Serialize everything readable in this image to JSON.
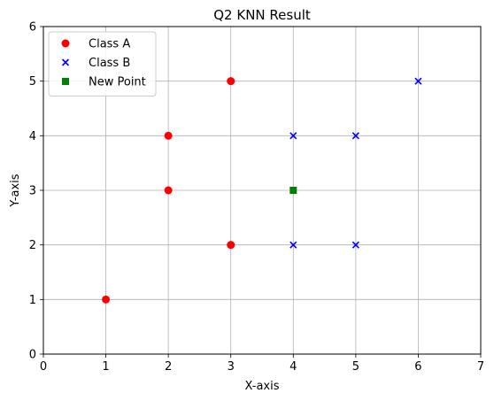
{
  "chart_data": {
    "type": "scatter",
    "title": "Q2 KNN Result",
    "xlabel": "X-axis",
    "ylabel": "Y-axis",
    "xlim": [
      0,
      7
    ],
    "ylim": [
      0,
      6
    ],
    "xticks": [
      0,
      1,
      2,
      3,
      4,
      5,
      6,
      7
    ],
    "yticks": [
      0,
      1,
      2,
      3,
      4,
      5,
      6
    ],
    "grid": true,
    "legend_position": "top-left",
    "series": [
      {
        "name": "Class A",
        "marker": "circle",
        "color": "#ff0000",
        "points": [
          [
            1,
            1
          ],
          [
            2,
            3
          ],
          [
            2,
            4
          ],
          [
            3,
            2
          ],
          [
            3,
            5
          ]
        ]
      },
      {
        "name": "Class B",
        "marker": "x",
        "color": "#0000ff",
        "points": [
          [
            4,
            2
          ],
          [
            4,
            4
          ],
          [
            5,
            2
          ],
          [
            5,
            4
          ],
          [
            6,
            5
          ]
        ]
      },
      {
        "name": "New Point",
        "marker": "square",
        "color": "#008000",
        "points": [
          [
            4,
            3
          ]
        ]
      }
    ]
  }
}
